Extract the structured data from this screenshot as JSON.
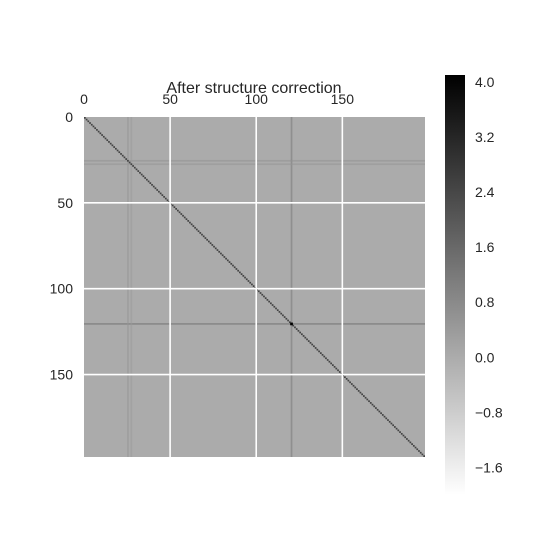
{
  "chart_data": {
    "type": "heatmap",
    "title": "After structure correction",
    "xlabel": "",
    "ylabel": "",
    "xlim": [
      0,
      198
    ],
    "ylim": [
      0,
      198
    ],
    "y_inverted": true,
    "x_ticks": [
      {
        "value": 0,
        "label": "0"
      },
      {
        "value": 50,
        "label": "50"
      },
      {
        "value": 100,
        "label": "100"
      },
      {
        "value": 150,
        "label": "150"
      }
    ],
    "y_ticks": [
      {
        "value": 0,
        "label": "0"
      },
      {
        "value": 50,
        "label": "50"
      },
      {
        "value": 100,
        "label": "100"
      },
      {
        "value": 150,
        "label": "150"
      }
    ],
    "grid": true,
    "colormap": "grays (low = white, high = black)",
    "color_range": [
      -2.0,
      4.1
    ],
    "background_value": 0.0,
    "diagonal_value": 2.5,
    "highlight_cells": [
      {
        "row": 120,
        "col": 120,
        "value": 4.1
      }
    ],
    "dark_bands": [
      {
        "axis": "row",
        "index": 120,
        "value": 1.4
      },
      {
        "axis": "col",
        "index": 120,
        "value": 1.2
      },
      {
        "axis": "row",
        "index": 25,
        "value": 0.6
      },
      {
        "axis": "row",
        "index": 27,
        "value": 0.5
      },
      {
        "axis": "col",
        "index": 25,
        "value": 0.5
      },
      {
        "axis": "col",
        "index": 27,
        "value": 0.4
      }
    ],
    "colorbar": {
      "ticks": [
        {
          "value": 4.0,
          "label": "4.0"
        },
        {
          "value": 3.2,
          "label": "3.2"
        },
        {
          "value": 2.4,
          "label": "2.4"
        },
        {
          "value": 1.6,
          "label": "1.6"
        },
        {
          "value": 0.8,
          "label": "0.8"
        },
        {
          "value": 0.0,
          "label": "0.0"
        },
        {
          "value": -0.8,
          "label": "−0.8"
        },
        {
          "value": -1.6,
          "label": "−1.6"
        }
      ]
    }
  }
}
